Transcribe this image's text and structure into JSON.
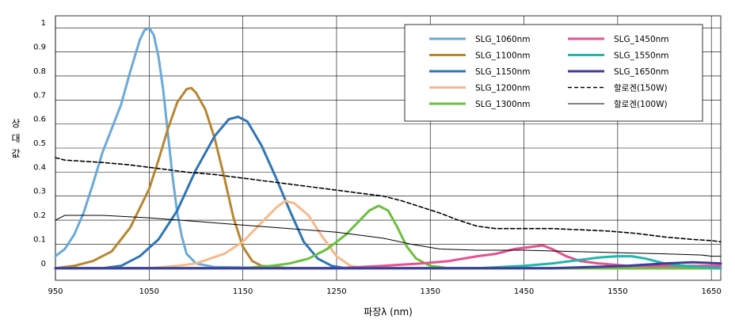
{
  "chart_data": {
    "type": "line",
    "xlabel": "파장λ (nm)",
    "ylabel": "상대값",
    "xlim": [
      950,
      1660
    ],
    "ylim": [
      -0.05,
      1.05
    ],
    "x_ticks": [
      950,
      1050,
      1150,
      1250,
      1350,
      1450,
      1550,
      1650
    ],
    "y_ticks": [
      0,
      0.1,
      0.2,
      0.3,
      0.4,
      0.5,
      0.6,
      0.7,
      0.8,
      0.9,
      1
    ],
    "y_tick_labels": [
      "0",
      "0.1",
      "0.2",
      "0.3",
      "0.4",
      "0.5",
      "0.6",
      "0.7",
      "0.8",
      "0.9",
      "1"
    ],
    "grid": true,
    "legend_position": "top-right",
    "series": [
      {
        "name": "SLG_1060nm",
        "color": "#6aaad8",
        "dash": "solid",
        "width": 3,
        "points": [
          [
            950,
            0.05
          ],
          [
            960,
            0.08
          ],
          [
            970,
            0.14
          ],
          [
            980,
            0.23
          ],
          [
            990,
            0.35
          ],
          [
            1000,
            0.48
          ],
          [
            1010,
            0.58
          ],
          [
            1020,
            0.68
          ],
          [
            1030,
            0.82
          ],
          [
            1040,
            0.95
          ],
          [
            1045,
            0.99
          ],
          [
            1050,
            1.0
          ],
          [
            1055,
            0.97
          ],
          [
            1060,
            0.88
          ],
          [
            1065,
            0.74
          ],
          [
            1070,
            0.56
          ],
          [
            1075,
            0.38
          ],
          [
            1080,
            0.23
          ],
          [
            1085,
            0.13
          ],
          [
            1090,
            0.06
          ],
          [
            1100,
            0.02
          ],
          [
            1120,
            0.005
          ],
          [
            1200,
            0.0
          ],
          [
            1660,
            0.0
          ]
        ]
      },
      {
        "name": "SLG_1100nm",
        "color": "#b8862f",
        "dash": "solid",
        "width": 3,
        "points": [
          [
            950,
            0.0
          ],
          [
            970,
            0.01
          ],
          [
            990,
            0.03
          ],
          [
            1010,
            0.07
          ],
          [
            1030,
            0.17
          ],
          [
            1050,
            0.33
          ],
          [
            1060,
            0.45
          ],
          [
            1070,
            0.58
          ],
          [
            1080,
            0.69
          ],
          [
            1090,
            0.745
          ],
          [
            1095,
            0.75
          ],
          [
            1100,
            0.73
          ],
          [
            1110,
            0.66
          ],
          [
            1120,
            0.54
          ],
          [
            1130,
            0.38
          ],
          [
            1140,
            0.21
          ],
          [
            1150,
            0.09
          ],
          [
            1160,
            0.03
          ],
          [
            1170,
            0.01
          ],
          [
            1200,
            0.0
          ],
          [
            1660,
            0.0
          ]
        ]
      },
      {
        "name": "SLG_1150nm",
        "color": "#2e75b6",
        "dash": "solid",
        "width": 3,
        "points": [
          [
            950,
            0.0
          ],
          [
            1000,
            0.0
          ],
          [
            1020,
            0.01
          ],
          [
            1040,
            0.05
          ],
          [
            1060,
            0.12
          ],
          [
            1080,
            0.24
          ],
          [
            1100,
            0.41
          ],
          [
            1120,
            0.55
          ],
          [
            1135,
            0.62
          ],
          [
            1145,
            0.63
          ],
          [
            1155,
            0.61
          ],
          [
            1170,
            0.51
          ],
          [
            1185,
            0.38
          ],
          [
            1200,
            0.24
          ],
          [
            1215,
            0.11
          ],
          [
            1230,
            0.04
          ],
          [
            1245,
            0.01
          ],
          [
            1260,
            0.0
          ],
          [
            1660,
            0.0
          ]
        ]
      },
      {
        "name": "SLG_1200nm",
        "color": "#f7b98a",
        "dash": "solid",
        "width": 3,
        "points": [
          [
            950,
            0.0
          ],
          [
            1050,
            0.0
          ],
          [
            1080,
            0.01
          ],
          [
            1100,
            0.02
          ],
          [
            1130,
            0.06
          ],
          [
            1150,
            0.11
          ],
          [
            1170,
            0.19
          ],
          [
            1185,
            0.25
          ],
          [
            1195,
            0.28
          ],
          [
            1205,
            0.27
          ],
          [
            1220,
            0.22
          ],
          [
            1235,
            0.13
          ],
          [
            1250,
            0.05
          ],
          [
            1265,
            0.01
          ],
          [
            1280,
            0.0
          ],
          [
            1660,
            0.0
          ]
        ]
      },
      {
        "name": "SLG_1300nm",
        "color": "#6bbf3f",
        "dash": "solid",
        "width": 3,
        "points": [
          [
            950,
            0.0
          ],
          [
            1150,
            0.0
          ],
          [
            1180,
            0.01
          ],
          [
            1200,
            0.02
          ],
          [
            1220,
            0.04
          ],
          [
            1240,
            0.08
          ],
          [
            1260,
            0.14
          ],
          [
            1275,
            0.2
          ],
          [
            1285,
            0.24
          ],
          [
            1295,
            0.26
          ],
          [
            1305,
            0.24
          ],
          [
            1315,
            0.17
          ],
          [
            1325,
            0.09
          ],
          [
            1335,
            0.04
          ],
          [
            1350,
            0.01
          ],
          [
            1370,
            0.0
          ],
          [
            1660,
            0.0
          ]
        ]
      },
      {
        "name": "SLG_1450nm",
        "color": "#e6508f",
        "dash": "solid",
        "width": 3,
        "points": [
          [
            950,
            0.0
          ],
          [
            1250,
            0.0
          ],
          [
            1300,
            0.01
          ],
          [
            1340,
            0.02
          ],
          [
            1370,
            0.03
          ],
          [
            1400,
            0.05
          ],
          [
            1420,
            0.06
          ],
          [
            1440,
            0.08
          ],
          [
            1460,
            0.09
          ],
          [
            1470,
            0.095
          ],
          [
            1480,
            0.08
          ],
          [
            1495,
            0.05
          ],
          [
            1510,
            0.03
          ],
          [
            1530,
            0.02
          ],
          [
            1560,
            0.01
          ],
          [
            1600,
            0.01
          ],
          [
            1660,
            0.01
          ]
        ]
      },
      {
        "name": "SLG_1550nm",
        "color": "#22b5ad",
        "dash": "solid",
        "width": 3,
        "points": [
          [
            950,
            0.0
          ],
          [
            1400,
            0.0
          ],
          [
            1450,
            0.01
          ],
          [
            1480,
            0.02
          ],
          [
            1510,
            0.035
          ],
          [
            1530,
            0.045
          ],
          [
            1550,
            0.05
          ],
          [
            1565,
            0.05
          ],
          [
            1580,
            0.04
          ],
          [
            1600,
            0.02
          ],
          [
            1620,
            0.01
          ],
          [
            1660,
            0.0
          ]
        ]
      },
      {
        "name": "SLG_1650nm",
        "color": "#3d3d9b",
        "dash": "solid",
        "width": 3,
        "points": [
          [
            950,
            0.0
          ],
          [
            1480,
            0.0
          ],
          [
            1520,
            0.005
          ],
          [
            1560,
            0.01
          ],
          [
            1600,
            0.02
          ],
          [
            1630,
            0.025
          ],
          [
            1660,
            0.02
          ]
        ]
      },
      {
        "name": "할로겐(150W)",
        "color": "#000000",
        "dash": "dashed",
        "width": 1.6,
        "points": [
          [
            950,
            0.46
          ],
          [
            960,
            0.45
          ],
          [
            980,
            0.445
          ],
          [
            1000,
            0.44
          ],
          [
            1030,
            0.43
          ],
          [
            1060,
            0.415
          ],
          [
            1090,
            0.4
          ],
          [
            1120,
            0.39
          ],
          [
            1150,
            0.375
          ],
          [
            1180,
            0.36
          ],
          [
            1210,
            0.345
          ],
          [
            1240,
            0.33
          ],
          [
            1270,
            0.315
          ],
          [
            1300,
            0.3
          ],
          [
            1320,
            0.28
          ],
          [
            1340,
            0.255
          ],
          [
            1360,
            0.23
          ],
          [
            1380,
            0.2
          ],
          [
            1400,
            0.175
          ],
          [
            1420,
            0.165
          ],
          [
            1450,
            0.165
          ],
          [
            1480,
            0.165
          ],
          [
            1510,
            0.16
          ],
          [
            1540,
            0.155
          ],
          [
            1570,
            0.145
          ],
          [
            1600,
            0.13
          ],
          [
            1630,
            0.12
          ],
          [
            1650,
            0.115
          ],
          [
            1660,
            0.11
          ]
        ]
      },
      {
        "name": "할로겐(100W)",
        "color": "#000000",
        "dash": "solid",
        "width": 1,
        "points": [
          [
            950,
            0.2
          ],
          [
            960,
            0.22
          ],
          [
            970,
            0.22
          ],
          [
            1000,
            0.22
          ],
          [
            1050,
            0.21
          ],
          [
            1100,
            0.195
          ],
          [
            1150,
            0.18
          ],
          [
            1200,
            0.165
          ],
          [
            1250,
            0.15
          ],
          [
            1300,
            0.125
          ],
          [
            1330,
            0.1
          ],
          [
            1360,
            0.08
          ],
          [
            1400,
            0.075
          ],
          [
            1450,
            0.075
          ],
          [
            1500,
            0.07
          ],
          [
            1550,
            0.065
          ],
          [
            1600,
            0.06
          ],
          [
            1640,
            0.055
          ],
          [
            1650,
            0.05
          ],
          [
            1660,
            0.05
          ]
        ]
      }
    ]
  }
}
